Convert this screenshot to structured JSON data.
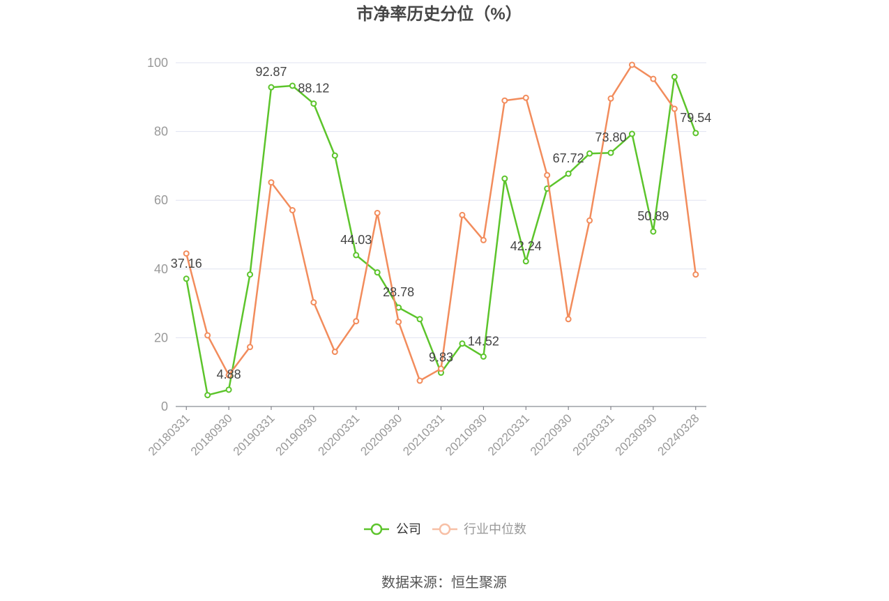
{
  "source": "数据来源：恒生聚源",
  "chart_data": {
    "type": "line",
    "title": "市净率历史分位（%）",
    "categories": [
      "20180331",
      "",
      "20180930",
      "",
      "20190331",
      "",
      "20190930",
      "",
      "20200331",
      "",
      "20200930",
      "",
      "20210331",
      "",
      "20210930",
      "",
      "20220331",
      "",
      "20220930",
      "",
      "20230331",
      "",
      "20230930",
      "",
      "20240328"
    ],
    "ylim": [
      0,
      100
    ],
    "yticks": [
      0,
      20,
      40,
      60,
      80,
      100
    ],
    "grid": true,
    "legend_position": "bottom",
    "series": [
      {
        "name": "公司",
        "color": "#5cc42b",
        "values": [
          37.16,
          3.3,
          4.88,
          38.4,
          92.87,
          93.3,
          88.12,
          73.0,
          44.03,
          39.0,
          28.78,
          25.4,
          9.83,
          18.3,
          14.52,
          66.3,
          42.24,
          63.4,
          67.72,
          73.6,
          73.8,
          79.3,
          50.89,
          95.9,
          79.54
        ],
        "labels": [
          "37.16",
          null,
          "4.88",
          null,
          "92.87",
          null,
          "88.12",
          null,
          "44.03",
          null,
          "28.78",
          null,
          "9.83",
          null,
          "14.52",
          null,
          "42.24",
          null,
          "67.72",
          null,
          "73.80",
          null,
          "50.89",
          null,
          "79.54"
        ]
      },
      {
        "name": "行业中位数",
        "color": "#f28c5c",
        "values": [
          44.5,
          20.7,
          9.1,
          17.3,
          65.2,
          57.1,
          30.3,
          15.9,
          24.8,
          56.3,
          24.6,
          7.5,
          11.0,
          55.7,
          48.4,
          89.0,
          89.8,
          67.3,
          25.4,
          54.1,
          89.6,
          99.4,
          95.3,
          86.6,
          38.4
        ]
      }
    ]
  }
}
